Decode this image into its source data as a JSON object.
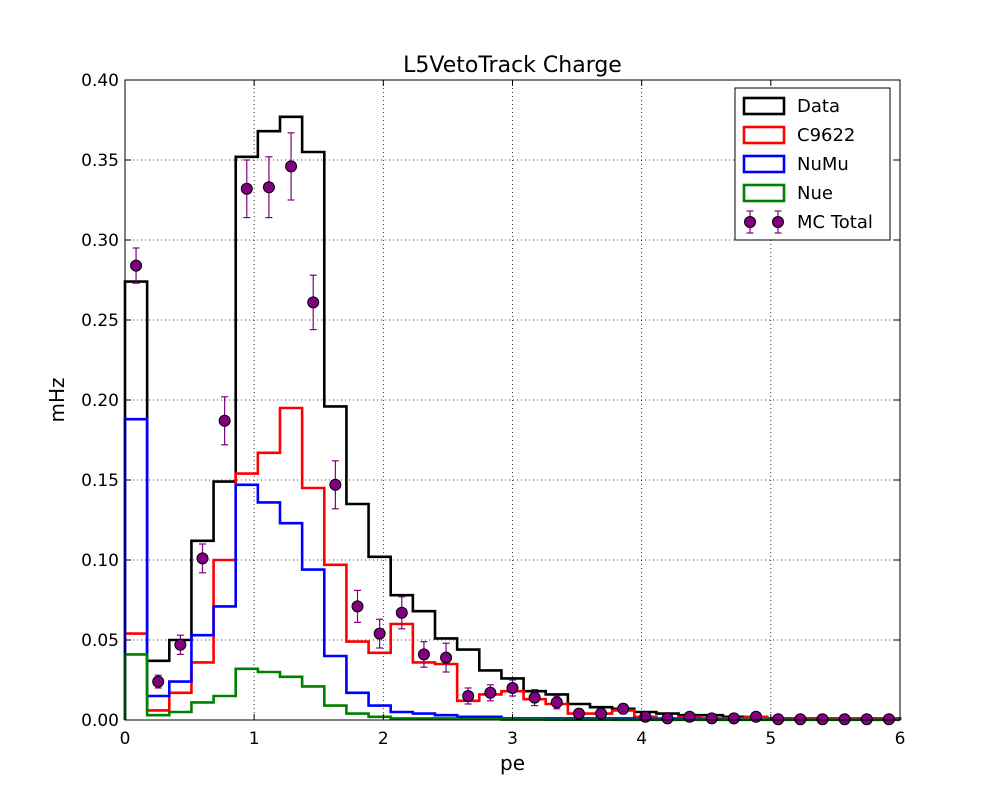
{
  "chart_data": {
    "type": "histogram",
    "title": "L5VetoTrack Charge",
    "xlabel": "pe",
    "ylabel": "mHz",
    "xlim": [
      0,
      6
    ],
    "ylim": [
      0,
      0.4
    ],
    "xticks": [
      "0",
      "1",
      "2",
      "3",
      "4",
      "5",
      "6"
    ],
    "yticks": [
      "0.00",
      "0.05",
      "0.10",
      "0.15",
      "0.20",
      "0.25",
      "0.30",
      "0.35",
      "0.40"
    ],
    "grid": true,
    "legend_position": "top-right",
    "bin_edges": [
      0,
      0.1714,
      0.3429,
      0.5143,
      0.6857,
      0.8571,
      1.0286,
      1.2,
      1.3714,
      1.5429,
      1.7143,
      1.8857,
      2.0571,
      2.2286,
      2.4,
      2.5714,
      2.7429,
      2.9143,
      3.0857,
      3.2571,
      3.4286,
      3.6,
      3.7714,
      3.9429,
      4.1143,
      4.2857,
      4.4571,
      4.6286,
      4.8,
      4.9714,
      5.1429,
      5.3143,
      5.4857,
      5.6571,
      5.8286,
      6.0
    ],
    "series": [
      {
        "name": "Data",
        "style": "step",
        "color": "#000000",
        "values": [
          0.274,
          0.037,
          0.05,
          0.112,
          0.149,
          0.352,
          0.368,
          0.377,
          0.355,
          0.196,
          0.135,
          0.102,
          0.078,
          0.068,
          0.051,
          0.044,
          0.031,
          0.026,
          0.018,
          0.016,
          0.01,
          0.008,
          0.007,
          0.005,
          0.004,
          0.003,
          0.003,
          0.002,
          0.002,
          0.001,
          0.001,
          0.001,
          0.001,
          0.001,
          0.001
        ]
      },
      {
        "name": "C9622",
        "style": "step",
        "color": "#ff0000",
        "values": [
          0.054,
          0.006,
          0.017,
          0.036,
          0.1,
          0.154,
          0.167,
          0.195,
          0.145,
          0.097,
          0.049,
          0.042,
          0.06,
          0.036,
          0.035,
          0.012,
          0.016,
          0.018,
          0.013,
          0.01,
          0.004,
          0.004,
          0.006,
          0.002,
          0.001,
          0.002,
          0.001,
          0.001,
          0.002,
          0.001,
          0.001,
          0.001,
          0.001,
          0.001,
          0.001
        ]
      },
      {
        "name": "NuMu",
        "style": "step",
        "color": "#0000ff",
        "values": [
          0.188,
          0.015,
          0.024,
          0.053,
          0.071,
          0.147,
          0.136,
          0.123,
          0.094,
          0.04,
          0.017,
          0.009,
          0.005,
          0.004,
          0.003,
          0.002,
          0.002,
          0.001,
          0.001,
          0.001,
          0.001,
          0.001,
          0.001,
          0.0005,
          0.0005,
          0.0005,
          0.0003,
          0.0003,
          0.0003,
          0.0003,
          0.0002,
          0.0002,
          0.0002,
          0.0002,
          0.0002
        ]
      },
      {
        "name": "Nue",
        "style": "step",
        "color": "#008000",
        "values": [
          0.041,
          0.003,
          0.005,
          0.011,
          0.015,
          0.032,
          0.03,
          0.027,
          0.021,
          0.009,
          0.004,
          0.002,
          0.001,
          0.001,
          0.001,
          0.0005,
          0.0005,
          0.0003,
          0.0003,
          0.0002,
          0.0002,
          0.0002,
          0.0001,
          0.0001,
          0.0001,
          0.0001,
          0.0001,
          0.0001,
          0.0001,
          0.0001,
          0.0001,
          0.0001,
          0.0001,
          0.0001,
          0.0001
        ]
      },
      {
        "name": "MC Total",
        "style": "points-with-errors",
        "color": "#800080",
        "x": [
          0.0857,
          0.2571,
          0.4286,
          0.6,
          0.7714,
          0.9429,
          1.1143,
          1.2857,
          1.4571,
          1.6286,
          1.8,
          1.9714,
          2.1429,
          2.3143,
          2.4857,
          2.6571,
          2.8286,
          3.0,
          3.1714,
          3.3429,
          3.5143,
          3.6857,
          3.8571,
          4.0286,
          4.2,
          4.3714,
          4.5429,
          4.7143,
          4.8857,
          5.0571,
          5.2286,
          5.4,
          5.5714,
          5.7429,
          5.9143
        ],
        "values": [
          0.284,
          0.024,
          0.047,
          0.101,
          0.187,
          0.332,
          0.333,
          0.346,
          0.261,
          0.147,
          0.071,
          0.054,
          0.067,
          0.041,
          0.039,
          0.015,
          0.017,
          0.02,
          0.014,
          0.011,
          0.004,
          0.004,
          0.007,
          0.002,
          0.001,
          0.002,
          0.001,
          0.001,
          0.002,
          0.0005,
          0.0005,
          0.0005,
          0.0005,
          0.0005,
          0.0005
        ],
        "errors": [
          0.011,
          0.004,
          0.006,
          0.009,
          0.015,
          0.018,
          0.019,
          0.021,
          0.017,
          0.015,
          0.01,
          0.009,
          0.01,
          0.008,
          0.009,
          0.005,
          0.005,
          0.005,
          0.005,
          0.004,
          0.002,
          0.002,
          0.003,
          0.001,
          0.001,
          0.001,
          0.001,
          0.001,
          0.001,
          0.0005,
          0.0005,
          0.0005,
          0.0005,
          0.0005,
          0.0005
        ]
      }
    ]
  }
}
